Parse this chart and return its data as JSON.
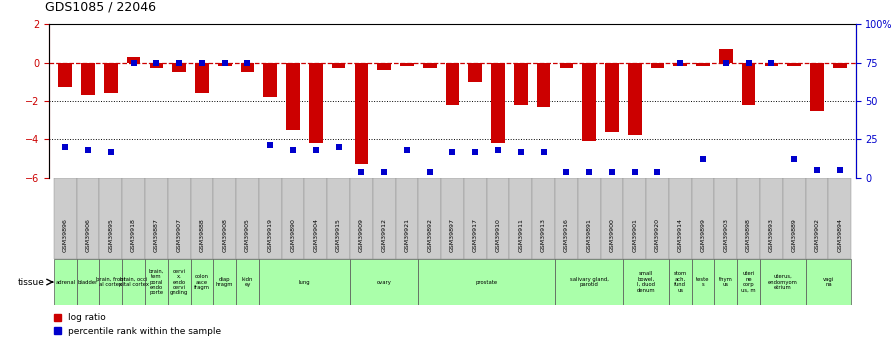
{
  "title": "GDS1085 / 22046",
  "samples": [
    "GSM39896",
    "GSM39906",
    "GSM39895",
    "GSM39918",
    "GSM39887",
    "GSM39907",
    "GSM39888",
    "GSM39908",
    "GSM39905",
    "GSM39919",
    "GSM39890",
    "GSM39904",
    "GSM39915",
    "GSM39909",
    "GSM39912",
    "GSM39921",
    "GSM39892",
    "GSM39897",
    "GSM39917",
    "GSM39910",
    "GSM39911",
    "GSM39913",
    "GSM39916",
    "GSM39891",
    "GSM39900",
    "GSM39901",
    "GSM39920",
    "GSM39914",
    "GSM39899",
    "GSM39903",
    "GSM39898",
    "GSM39893",
    "GSM39889",
    "GSM39902",
    "GSM39894"
  ],
  "log_ratio": [
    -1.3,
    -1.7,
    -1.6,
    0.3,
    -0.3,
    -0.5,
    -1.6,
    -0.2,
    -0.5,
    -1.8,
    -3.5,
    -4.2,
    -0.3,
    -5.3,
    -0.4,
    -0.2,
    -0.3,
    -2.2,
    -1.0,
    -4.2,
    -2.2,
    -2.3,
    -0.3,
    -4.1,
    -3.6,
    -3.8,
    -0.3,
    -0.2,
    -0.2,
    0.7,
    -2.2,
    -0.2,
    -0.2,
    -2.5,
    -0.3
  ],
  "percentile": [
    20,
    18,
    17,
    75,
    75,
    75,
    75,
    75,
    75,
    21,
    18,
    18,
    20,
    4,
    4,
    18,
    4,
    17,
    17,
    18,
    17,
    17,
    4,
    4,
    4,
    4,
    4,
    75,
    12,
    75,
    75,
    75,
    12,
    5,
    5
  ],
  "tissues": [
    {
      "label": "adrenal",
      "start": 0,
      "end": 1
    },
    {
      "label": "bladder",
      "start": 1,
      "end": 2
    },
    {
      "label": "brain, front\nal cortex",
      "start": 2,
      "end": 3
    },
    {
      "label": "brain, occi\npital cortex",
      "start": 3,
      "end": 4
    },
    {
      "label": "brain,\ntem\nporal\nendo\nporte",
      "start": 4,
      "end": 5
    },
    {
      "label": "cervi\nx,\nendo\ncervi\ngnding",
      "start": 5,
      "end": 6
    },
    {
      "label": "colon\nasce\nfragm",
      "start": 6,
      "end": 7
    },
    {
      "label": "diap\nhragm",
      "start": 7,
      "end": 8
    },
    {
      "label": "kidn\ney",
      "start": 8,
      "end": 9
    },
    {
      "label": "lung",
      "start": 9,
      "end": 13
    },
    {
      "label": "ovary",
      "start": 13,
      "end": 16
    },
    {
      "label": "prostate",
      "start": 16,
      "end": 22
    },
    {
      "label": "salivary gland,\nparotid",
      "start": 22,
      "end": 25
    },
    {
      "label": "small\nbowel,\nI, duod\ndenum",
      "start": 25,
      "end": 27
    },
    {
      "label": "stom\nach,\nfund\nus",
      "start": 27,
      "end": 28
    },
    {
      "label": "teste\ns",
      "start": 28,
      "end": 29
    },
    {
      "label": "thym\nus",
      "start": 29,
      "end": 30
    },
    {
      "label": "uteri\nne\ncorp\nus, m",
      "start": 30,
      "end": 31
    },
    {
      "label": "uterus,\nendomyom\netrium",
      "start": 31,
      "end": 33
    },
    {
      "label": "vagi\nna",
      "start": 33,
      "end": 35
    }
  ],
  "ylim_left": [
    -6,
    2
  ],
  "ylim_right": [
    0,
    100
  ],
  "bar_color": "#cc0000",
  "dot_color": "#0000cc",
  "dashed_color": "#cc0000",
  "tissue_color": "#aaffaa",
  "gsm_bg_color": "#cccccc",
  "title_fontsize": 9,
  "tick_fontsize": 7,
  "ytick_color_left": "#cc0000",
  "ytick_color_right": "#0000cc"
}
